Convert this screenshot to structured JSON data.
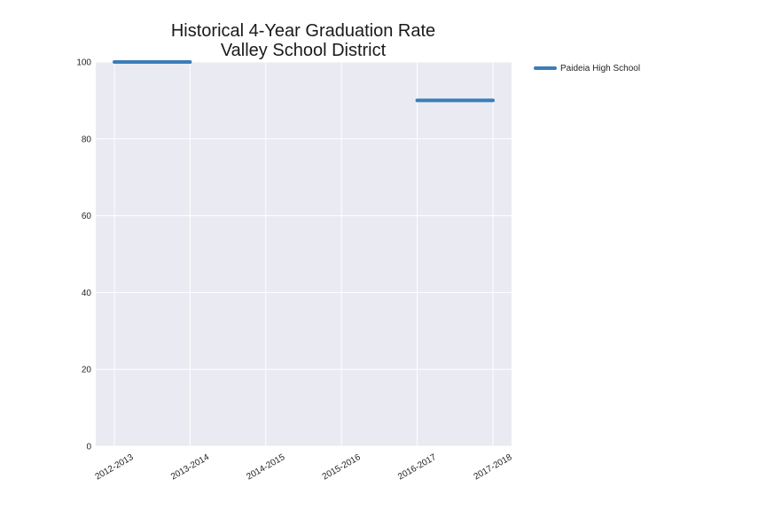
{
  "chart_data": {
    "type": "line",
    "title": [
      "Historical 4-Year Graduation Rate",
      "Valley School District"
    ],
    "xlabel": "",
    "ylabel": "",
    "categories": [
      "2012-2013",
      "2013-2014",
      "2014-2015",
      "2015-2016",
      "2016-2017",
      "2017-2018"
    ],
    "ylim": [
      0,
      100
    ],
    "yticks": [
      0,
      20,
      40,
      60,
      80,
      100
    ],
    "grid": true,
    "legend": "outside-right-top",
    "series": [
      {
        "name": "Paideia High School",
        "color": "#3a7db8",
        "values": [
          100,
          100,
          null,
          null,
          90,
          90
        ]
      }
    ]
  },
  "colors": {
    "plot_background": "#eaeaf2",
    "grid": "#ffffff",
    "text": "#262626"
  }
}
